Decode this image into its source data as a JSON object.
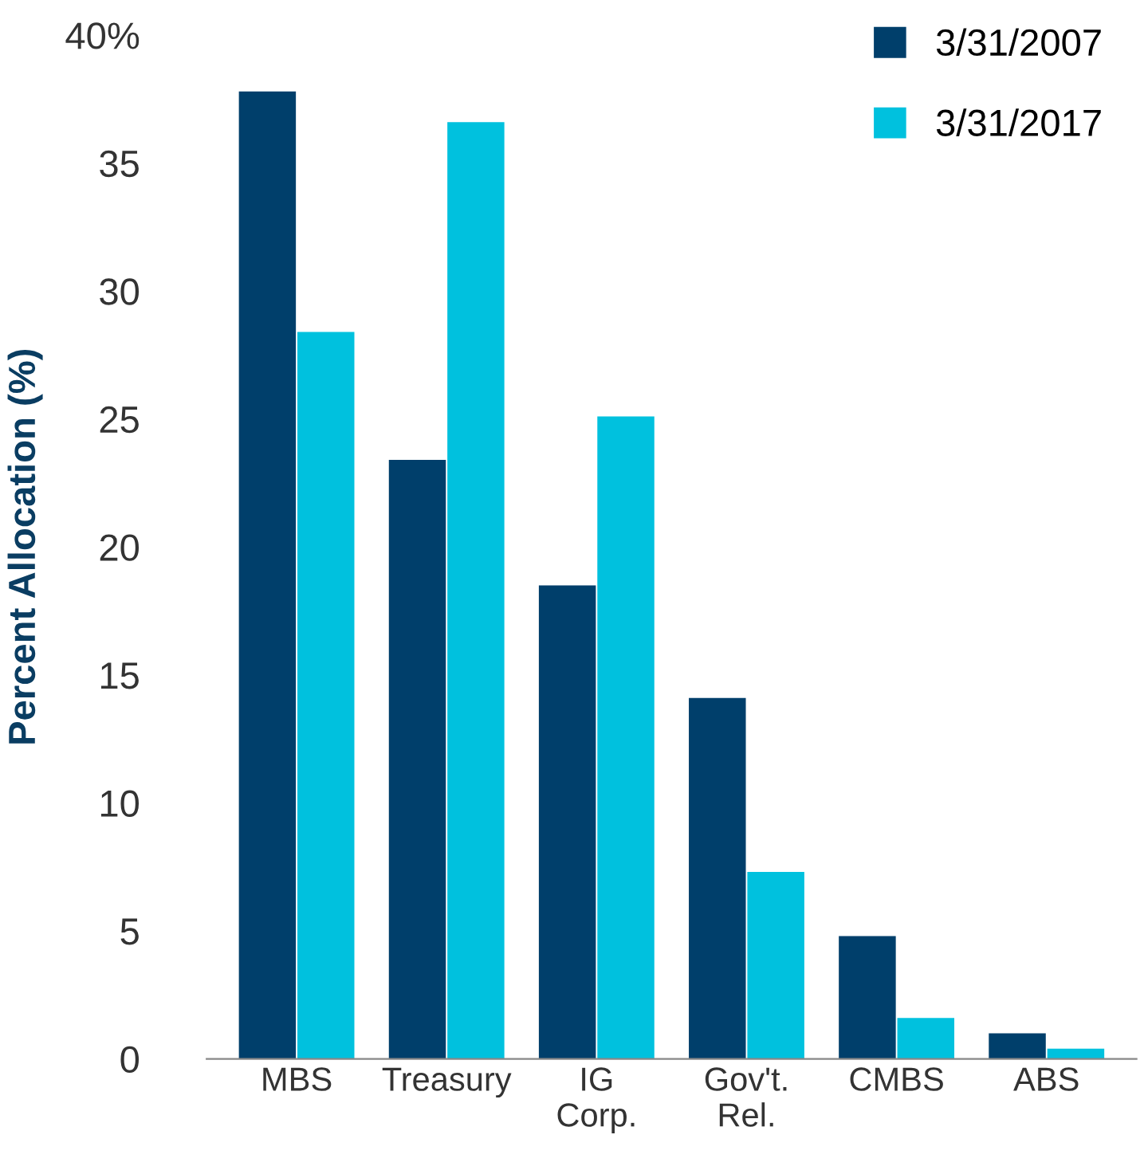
{
  "chart_data": {
    "type": "bar",
    "ylabel": "Percent Allocation (%)",
    "categories": [
      "MBS",
      "Treasury",
      "IG\nCorp.",
      "Gov't.\nRel.",
      "CMBS",
      "ABS"
    ],
    "series": [
      {
        "name": "3/31/2007",
        "color": "#003f6b",
        "values": [
          37.8,
          23.4,
          18.5,
          14.1,
          4.8,
          1.0
        ]
      },
      {
        "name": "3/31/2017",
        "color": "#00c1de",
        "values": [
          28.4,
          36.6,
          25.1,
          7.3,
          1.6,
          0.4
        ]
      }
    ],
    "ylim": [
      0,
      40
    ],
    "yticks": [
      0,
      5,
      10,
      15,
      20,
      25,
      30,
      35,
      {
        "value": 40,
        "label": "40%"
      }
    ],
    "grid": false,
    "legend": "top right"
  }
}
